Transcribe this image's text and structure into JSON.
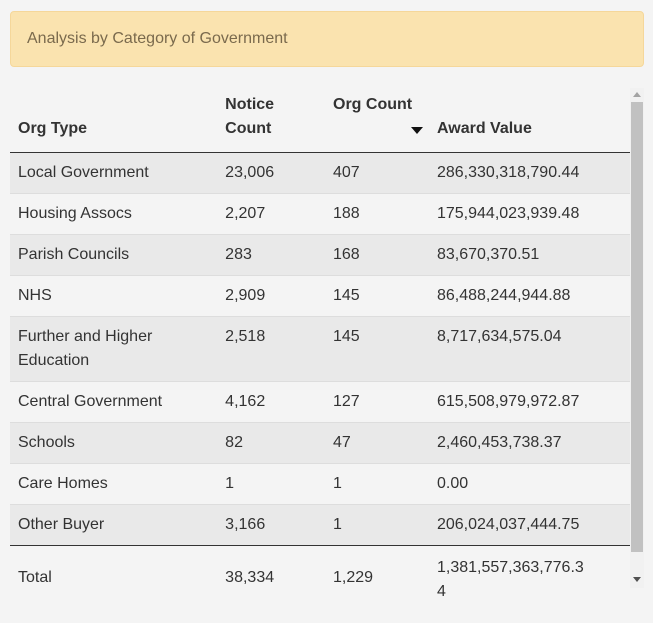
{
  "banner": {
    "title": "Analysis by Category of Government"
  },
  "table": {
    "headers": {
      "org_type": "Org Type",
      "notice_count": "Notice Count",
      "org_count": "Org Count",
      "award_value": "Award Value"
    },
    "sort": {
      "column": "org_count",
      "direction": "desc"
    },
    "rows": [
      {
        "org_type": "Local Government",
        "notice_count": "23,006",
        "org_count": "407",
        "award_value": "286,330,318,790.44"
      },
      {
        "org_type": "Housing Assocs",
        "notice_count": "2,207",
        "org_count": "188",
        "award_value": "175,944,023,939.48"
      },
      {
        "org_type": "Parish Councils",
        "notice_count": "283",
        "org_count": "168",
        "award_value": "83,670,370.51"
      },
      {
        "org_type": "NHS",
        "notice_count": "2,909",
        "org_count": "145",
        "award_value": "86,488,244,944.88"
      },
      {
        "org_type": "Further and Higher Education",
        "notice_count": "2,518",
        "org_count": "145",
        "award_value": "8,717,634,575.04"
      },
      {
        "org_type": "Central Government",
        "notice_count": "4,162",
        "org_count": "127",
        "award_value": "615,508,979,972.87"
      },
      {
        "org_type": "Schools",
        "notice_count": "82",
        "org_count": "47",
        "award_value": "2,460,453,738.37"
      },
      {
        "org_type": "Care Homes",
        "notice_count": "1",
        "org_count": "1",
        "award_value": "0.00"
      },
      {
        "org_type": "Other Buyer",
        "notice_count": "3,166",
        "org_count": "1",
        "award_value": "206,024,037,444.75"
      }
    ],
    "total": {
      "label": "Total",
      "notice_count": "38,334",
      "org_count": "1,229",
      "award_value": "1,381,557,363,776.34"
    }
  },
  "colors": {
    "banner_bg": "#fae3af",
    "banner_text": "#7a6a4d",
    "row_odd": "#e9e9e9",
    "row_even": "#f4f4f4"
  },
  "icons": {
    "sort": "sort-desc-icon",
    "scroll_up": "scroll-up-icon",
    "scroll_down": "scroll-down-icon"
  }
}
